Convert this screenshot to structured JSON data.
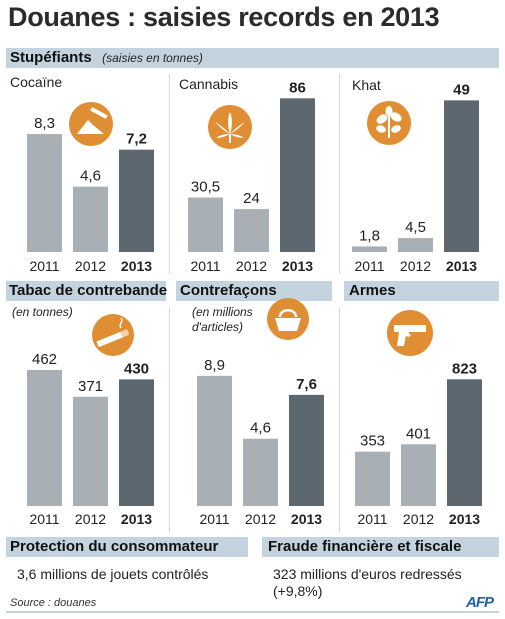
{
  "title": "Douanes : saisies records en 2013",
  "sections": {
    "stupefiants": {
      "heading": "Stupéfiants",
      "note": "(saisies en tonnes)"
    },
    "tabac": {
      "heading": "Tabac de contrebande",
      "note": "(en tonnes)"
    },
    "contrefacons": {
      "heading": "Contrefaçons",
      "note_line1": "(en millions",
      "note_line2": "d'articles)"
    },
    "armes": {
      "heading": "Armes"
    },
    "protection": {
      "heading": "Protection du consommateur",
      "text": "3,6 millions de jouets contrôlés"
    },
    "fraude": {
      "heading": "Fraude financière et fiscale",
      "text_line1": "323 millions d'euros redressés",
      "text_line2": "(+9,8%)"
    }
  },
  "panel_labels": {
    "cocaine": "Cocaïne",
    "cannabis": "Cannabis",
    "khat": "Khat"
  },
  "icons": {
    "cocaine": "powder-icon",
    "cannabis": "cannabis-leaf-icon",
    "khat": "khat-leaf-icon",
    "tabac": "cigarette-icon",
    "contrefacons": "handbag-icon",
    "armes": "pistol-icon"
  },
  "colors": {
    "bar_past": "#a8b0b6",
    "bar_current": "#5c6770",
    "icon": "#e08e34",
    "header_bg": "#c3d4df"
  },
  "source": "Source : douanes",
  "logo": "AFP",
  "chart_data": [
    {
      "type": "bar",
      "title": "Cocaïne",
      "categories": [
        "2011",
        "2012",
        "2013"
      ],
      "values": [
        8.3,
        4.6,
        7.2
      ],
      "labels": [
        "8,3",
        "4,6",
        "7,2"
      ],
      "highlight": "2013",
      "ylim": [
        0,
        9.5
      ]
    },
    {
      "type": "bar",
      "title": "Cannabis",
      "categories": [
        "2011",
        "2012",
        "2013"
      ],
      "values": [
        30.5,
        24,
        86
      ],
      "labels": [
        "30,5",
        "24",
        "86"
      ],
      "highlight": "2013",
      "ylim": [
        0,
        94
      ]
    },
    {
      "type": "bar",
      "title": "Khat",
      "categories": [
        "2011",
        "2012",
        "2013"
      ],
      "values": [
        1.8,
        4.5,
        49
      ],
      "labels": [
        "1,8",
        "4,5",
        "49"
      ],
      "highlight": "2013",
      "ylim": [
        0,
        53
      ]
    },
    {
      "type": "bar",
      "title": "Tabac de contrebande",
      "categories": [
        "2011",
        "2012",
        "2013"
      ],
      "values": [
        462,
        371,
        430
      ],
      "labels": [
        "462",
        "371",
        "430"
      ],
      "highlight": "2013",
      "ylim": [
        0,
        540
      ]
    },
    {
      "type": "bar",
      "title": "Contrefaçons",
      "categories": [
        "2011",
        "2012",
        "2013"
      ],
      "values": [
        8.9,
        4.6,
        7.6
      ],
      "labels": [
        "8,9",
        "4,6",
        "7,6"
      ],
      "highlight": "2013",
      "ylim": [
        0,
        10.6
      ]
    },
    {
      "type": "bar",
      "title": "Armes",
      "categories": [
        "2011",
        "2012",
        "2013"
      ],
      "values": [
        353,
        401,
        823
      ],
      "labels": [
        "353",
        "401",
        "823"
      ],
      "highlight": "2013",
      "ylim": [
        0,
        955
      ]
    }
  ]
}
